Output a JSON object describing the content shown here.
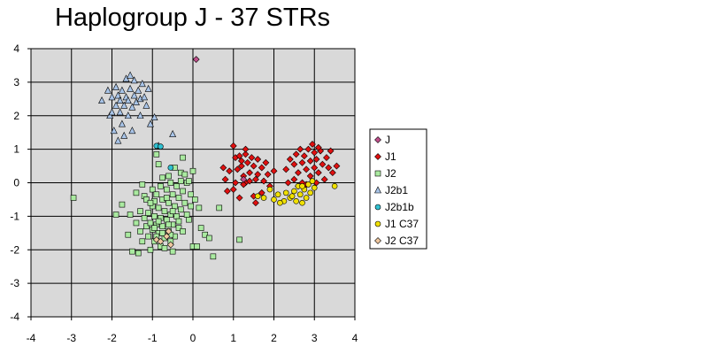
{
  "chart_data": {
    "type": "scatter",
    "title": "Haplogroup J - 37 STRs",
    "xlabel": "",
    "ylabel": "",
    "xlim": [
      -4,
      4
    ],
    "ylim": [
      -4,
      4
    ],
    "xticks": [
      "-4",
      "-3",
      "-2",
      "-1",
      "0",
      "1",
      "2",
      "3",
      "4"
    ],
    "yticks": [
      "4",
      "3",
      "2",
      "1",
      "0",
      "-1",
      "-2",
      "-3",
      "-4"
    ],
    "grid": true,
    "legend_position": "right",
    "background": "#d9d9d9",
    "series": [
      {
        "name": "J",
        "marker": "diamond",
        "color": "#c0508c",
        "points": [
          [
            0.08,
            3.68
          ],
          [
            1.25,
            0.1
          ]
        ]
      },
      {
        "name": "J1",
        "marker": "diamond",
        "color": "#e01010",
        "points": [
          [
            1.0,
            1.1
          ],
          [
            1.05,
            0.75
          ],
          [
            1.1,
            0.4
          ],
          [
            1.15,
            0.8
          ],
          [
            1.2,
            0.5
          ],
          [
            1.25,
            0.2
          ],
          [
            1.3,
            0.85
          ],
          [
            1.3,
            1.0
          ],
          [
            1.35,
            0.6
          ],
          [
            1.4,
            0.3
          ],
          [
            1.45,
            0.75
          ],
          [
            1.5,
            0.5
          ],
          [
            1.55,
            0.1
          ],
          [
            1.6,
            0.7
          ],
          [
            1.6,
            0.25
          ],
          [
            1.7,
            0.45
          ],
          [
            1.75,
            0.05
          ],
          [
            1.8,
            0.6
          ],
          [
            1.85,
            0.25
          ],
          [
            1.9,
            -0.1
          ],
          [
            2.0,
            0.35
          ],
          [
            0.75,
            0.45
          ],
          [
            0.8,
            0.1
          ],
          [
            0.85,
            -0.25
          ],
          [
            0.9,
            0.35
          ],
          [
            1.05,
            0.0
          ],
          [
            1.0,
            -0.2
          ],
          [
            1.15,
            -0.45
          ],
          [
            1.2,
            0.65
          ],
          [
            1.3,
            0.0
          ],
          [
            1.4,
            0.05
          ],
          [
            1.5,
            -0.4
          ],
          [
            1.55,
            -0.6
          ],
          [
            1.7,
            -0.3
          ],
          [
            1.25,
            -0.05
          ],
          [
            2.3,
            0.4
          ],
          [
            2.4,
            0.7
          ],
          [
            2.5,
            0.1
          ],
          [
            2.5,
            0.55
          ],
          [
            2.55,
            0.85
          ],
          [
            2.6,
            0.3
          ],
          [
            2.65,
            1.0
          ],
          [
            2.7,
            0.6
          ],
          [
            2.7,
            0.0
          ],
          [
            2.75,
            0.8
          ],
          [
            2.8,
            0.4
          ],
          [
            2.8,
            -0.05
          ],
          [
            2.85,
            1.0
          ],
          [
            2.9,
            0.65
          ],
          [
            2.9,
            0.2
          ],
          [
            2.95,
            1.15
          ],
          [
            3.0,
            0.9
          ],
          [
            3.0,
            0.45
          ],
          [
            3.05,
            0.0
          ],
          [
            3.05,
            0.7
          ],
          [
            3.1,
            0.3
          ],
          [
            3.15,
            0.95
          ],
          [
            3.2,
            0.55
          ],
          [
            3.25,
            0.1
          ],
          [
            3.3,
            0.75
          ],
          [
            3.35,
            0.45
          ],
          [
            3.4,
            0.95
          ],
          [
            3.45,
            0.3
          ],
          [
            3.55,
            0.5
          ],
          [
            2.35,
            0.0
          ],
          [
            2.6,
            -0.1
          ],
          [
            3.1,
            1.05
          ]
        ]
      },
      {
        "name": "J2",
        "marker": "square",
        "color": "#aaeaa0",
        "points": [
          [
            -2.95,
            -0.45
          ],
          [
            -1.9,
            -0.95
          ],
          [
            -1.75,
            -0.65
          ],
          [
            -1.6,
            -1.55
          ],
          [
            -1.55,
            -0.95
          ],
          [
            -1.5,
            -2.05
          ],
          [
            -1.4,
            -1.2
          ],
          [
            -1.35,
            -2.1
          ],
          [
            -1.3,
            -0.85
          ],
          [
            -1.3,
            -1.45
          ],
          [
            -1.25,
            -1.75
          ],
          [
            -1.2,
            -0.4
          ],
          [
            -1.2,
            -1.05
          ],
          [
            -1.15,
            -1.3
          ],
          [
            -1.1,
            -1.6
          ],
          [
            -1.1,
            -0.9
          ],
          [
            -1.05,
            -1.2
          ],
          [
            -1.05,
            -2.0
          ],
          [
            -1.0,
            -0.2
          ],
          [
            -1.0,
            -0.7
          ],
          [
            -1.0,
            -1.4
          ],
          [
            -0.95,
            -1.0
          ],
          [
            -0.95,
            -1.75
          ],
          [
            -0.9,
            -0.35
          ],
          [
            -0.9,
            -1.25
          ],
          [
            -0.85,
            -0.75
          ],
          [
            -0.85,
            -1.5
          ],
          [
            -0.8,
            -0.1
          ],
          [
            -0.8,
            -1.05
          ],
          [
            -0.8,
            -1.9
          ],
          [
            -0.75,
            -0.5
          ],
          [
            -0.75,
            -1.3
          ],
          [
            -0.7,
            -0.85
          ],
          [
            -0.7,
            -1.65
          ],
          [
            -0.65,
            -0.2
          ],
          [
            -0.65,
            -1.1
          ],
          [
            -0.6,
            -0.6
          ],
          [
            -0.6,
            -1.45
          ],
          [
            -0.55,
            0.0
          ],
          [
            -0.55,
            -0.95
          ],
          [
            -0.5,
            -0.35
          ],
          [
            -0.5,
            -1.25
          ],
          [
            -0.45,
            -0.7
          ],
          [
            -0.45,
            -1.6
          ],
          [
            -0.4,
            -0.1
          ],
          [
            -0.4,
            -1.0
          ],
          [
            -0.35,
            -0.45
          ],
          [
            -0.35,
            -1.35
          ],
          [
            -0.3,
            0.05
          ],
          [
            -0.3,
            -0.8
          ],
          [
            -0.25,
            -0.25
          ],
          [
            -0.2,
            -0.6
          ],
          [
            -0.15,
            0.0
          ],
          [
            -0.1,
            -1.1
          ],
          [
            -0.05,
            -0.35
          ],
          [
            0.0,
            -1.9
          ],
          [
            0.1,
            -1.9
          ],
          [
            0.15,
            -0.75
          ],
          [
            0.2,
            -1.35
          ],
          [
            0.3,
            -1.55
          ],
          [
            0.4,
            -1.65
          ],
          [
            0.5,
            -2.2
          ],
          [
            0.65,
            -0.75
          ],
          [
            1.15,
            -1.7
          ],
          [
            -0.9,
            0.85
          ],
          [
            -0.85,
            0.55
          ],
          [
            -0.75,
            0.15
          ],
          [
            -0.6,
            0.2
          ],
          [
            -0.45,
            0.45
          ],
          [
            -0.3,
            0.3
          ],
          [
            -0.25,
            0.75
          ],
          [
            -0.2,
            0.25
          ],
          [
            -0.1,
            0.05
          ],
          [
            0.0,
            0.35
          ],
          [
            -1.4,
            -0.3
          ],
          [
            -1.25,
            -0.05
          ],
          [
            -1.15,
            -0.5
          ],
          [
            -0.95,
            -0.55
          ],
          [
            -0.9,
            -1.6
          ],
          [
            -0.7,
            -1.95
          ],
          [
            -0.55,
            -1.75
          ],
          [
            -0.5,
            -2.05
          ],
          [
            -0.35,
            -1.15
          ],
          [
            -0.25,
            -1.45
          ],
          [
            -0.15,
            -0.95
          ],
          [
            -0.05,
            -0.7
          ],
          [
            0.05,
            -0.5
          ],
          [
            -1.05,
            -0.6
          ],
          [
            -0.65,
            -0.45
          ],
          [
            -0.5,
            -0.85
          ],
          [
            -0.85,
            -1.15
          ],
          [
            -0.6,
            -1.25
          ],
          [
            -0.95,
            -1.35
          ],
          [
            -0.75,
            -1.5
          ],
          [
            -0.55,
            -1.55
          ]
        ]
      },
      {
        "name": "J2b1",
        "marker": "triangle",
        "color": "#a8c4e8",
        "points": [
          [
            -2.25,
            2.45
          ],
          [
            -2.1,
            2.75
          ],
          [
            -2.05,
            2.0
          ],
          [
            -2.0,
            2.55
          ],
          [
            -1.95,
            1.55
          ],
          [
            -1.9,
            2.3
          ],
          [
            -1.9,
            2.85
          ],
          [
            -1.85,
            2.6
          ],
          [
            -1.85,
            1.25
          ],
          [
            -1.8,
            2.1
          ],
          [
            -1.8,
            2.45
          ],
          [
            -1.75,
            2.75
          ],
          [
            -1.75,
            1.75
          ],
          [
            -1.7,
            2.3
          ],
          [
            -1.65,
            2.55
          ],
          [
            -1.65,
            3.1
          ],
          [
            -1.6,
            2.0
          ],
          [
            -1.6,
            2.45
          ],
          [
            -1.55,
            2.8
          ],
          [
            -1.55,
            3.2
          ],
          [
            -1.5,
            2.25
          ],
          [
            -1.5,
            1.55
          ],
          [
            -1.45,
            2.6
          ],
          [
            -1.45,
            3.05
          ],
          [
            -1.4,
            2.4
          ],
          [
            -1.35,
            2.75
          ],
          [
            -1.3,
            2.0
          ],
          [
            -1.3,
            2.5
          ],
          [
            -1.25,
            2.95
          ],
          [
            -1.2,
            2.55
          ],
          [
            -1.15,
            2.3
          ],
          [
            -1.1,
            2.8
          ],
          [
            -1.05,
            1.75
          ],
          [
            -0.95,
            1.95
          ],
          [
            -0.85,
            1.1
          ],
          [
            -0.5,
            1.45
          ],
          [
            -1.7,
            1.4
          ],
          [
            -2.0,
            2.1
          ]
        ]
      },
      {
        "name": "J2b1b",
        "marker": "circle",
        "color": "#30c0d0",
        "points": [
          [
            -0.9,
            1.1
          ],
          [
            -0.8,
            1.08
          ],
          [
            -0.55,
            0.45
          ]
        ]
      },
      {
        "name": "J1 C37",
        "marker": "circle",
        "color": "#f0e000",
        "points": [
          [
            1.6,
            -0.4
          ],
          [
            1.9,
            -0.2
          ],
          [
            2.0,
            -0.5
          ],
          [
            2.1,
            -0.35
          ],
          [
            2.25,
            -0.55
          ],
          [
            2.3,
            -0.3
          ],
          [
            2.4,
            -0.45
          ],
          [
            2.5,
            -0.25
          ],
          [
            2.55,
            -0.55
          ],
          [
            2.6,
            -0.1
          ],
          [
            2.65,
            -0.35
          ],
          [
            2.7,
            -0.6
          ],
          [
            2.75,
            -0.2
          ],
          [
            2.8,
            -0.45
          ],
          [
            2.85,
            -0.05
          ],
          [
            2.9,
            -0.3
          ],
          [
            2.95,
            0.05
          ],
          [
            3.0,
            -0.15
          ],
          [
            3.5,
            -0.1
          ],
          [
            1.75,
            -0.45
          ],
          [
            2.15,
            -0.6
          ],
          [
            2.45,
            -0.4
          ],
          [
            2.7,
            -0.1
          ]
        ]
      },
      {
        "name": "J2 C37",
        "marker": "diamond",
        "color": "#f0c8a0",
        "points": [
          [
            -0.9,
            -1.7
          ],
          [
            -0.8,
            -1.75
          ],
          [
            -0.65,
            -1.6
          ],
          [
            -0.55,
            -1.85
          ],
          [
            -0.6,
            -1.45
          ]
        ]
      }
    ]
  }
}
